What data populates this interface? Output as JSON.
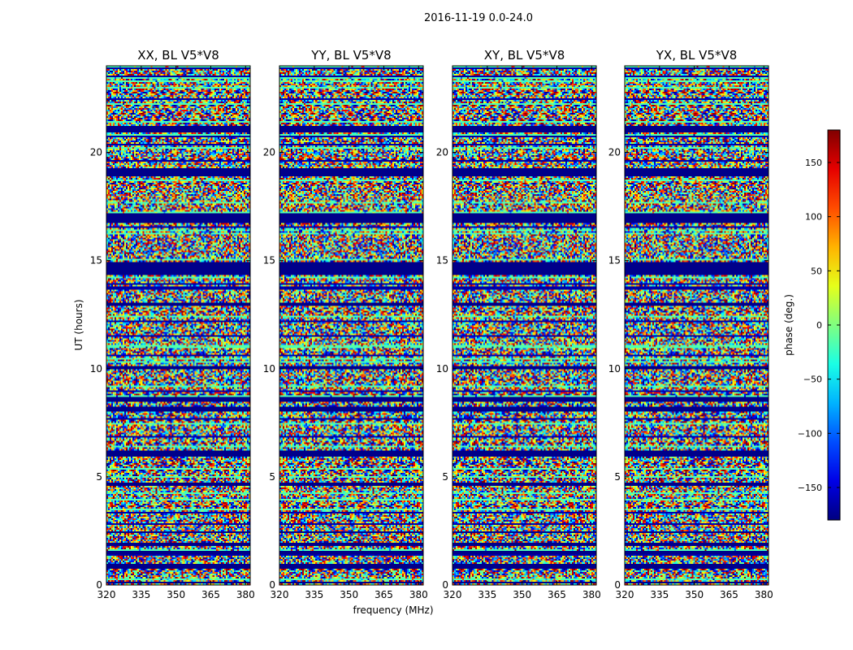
{
  "chart_data": {
    "type": "heatmap",
    "suptitle": "2016-11-19 0.0-24.0",
    "xlabel": "frequency (MHz)",
    "ylabel": "UT (hours)",
    "xlim": [
      320,
      382
    ],
    "ylim": [
      0,
      24
    ],
    "xticks": [
      320,
      335,
      350,
      365,
      380
    ],
    "yticks": [
      0,
      5,
      10,
      15,
      20
    ],
    "panels": [
      {
        "title": "XX, BL V5*V8"
      },
      {
        "title": "YY, BL V5*V8"
      },
      {
        "title": "XY, BL V5*V8"
      },
      {
        "title": "YX, BL V5*V8"
      }
    ],
    "flagged_bands_ut": [
      [
        0.05,
        0.15
      ],
      [
        0.75,
        1.0
      ],
      [
        1.45,
        1.6
      ],
      [
        1.8,
        1.95
      ],
      [
        2.4,
        2.5
      ],
      [
        4.55,
        4.7
      ],
      [
        5.9,
        6.2
      ],
      [
        8.0,
        8.25
      ],
      [
        8.45,
        8.7
      ],
      [
        10.0,
        10.1
      ],
      [
        12.9,
        13.05
      ],
      [
        14.35,
        14.95
      ],
      [
        16.7,
        17.2
      ],
      [
        18.9,
        19.3
      ],
      [
        20.95,
        21.25
      ]
    ],
    "colorbar": {
      "label": "phase (deg.)",
      "range": [
        -180,
        180
      ],
      "ticks": [
        -150,
        -100,
        -50,
        0,
        50,
        100,
        150
      ],
      "tick_labels": [
        "−150",
        "−100",
        "−50",
        "0",
        "50",
        "100",
        "150"
      ],
      "colormap": "jet"
    }
  }
}
